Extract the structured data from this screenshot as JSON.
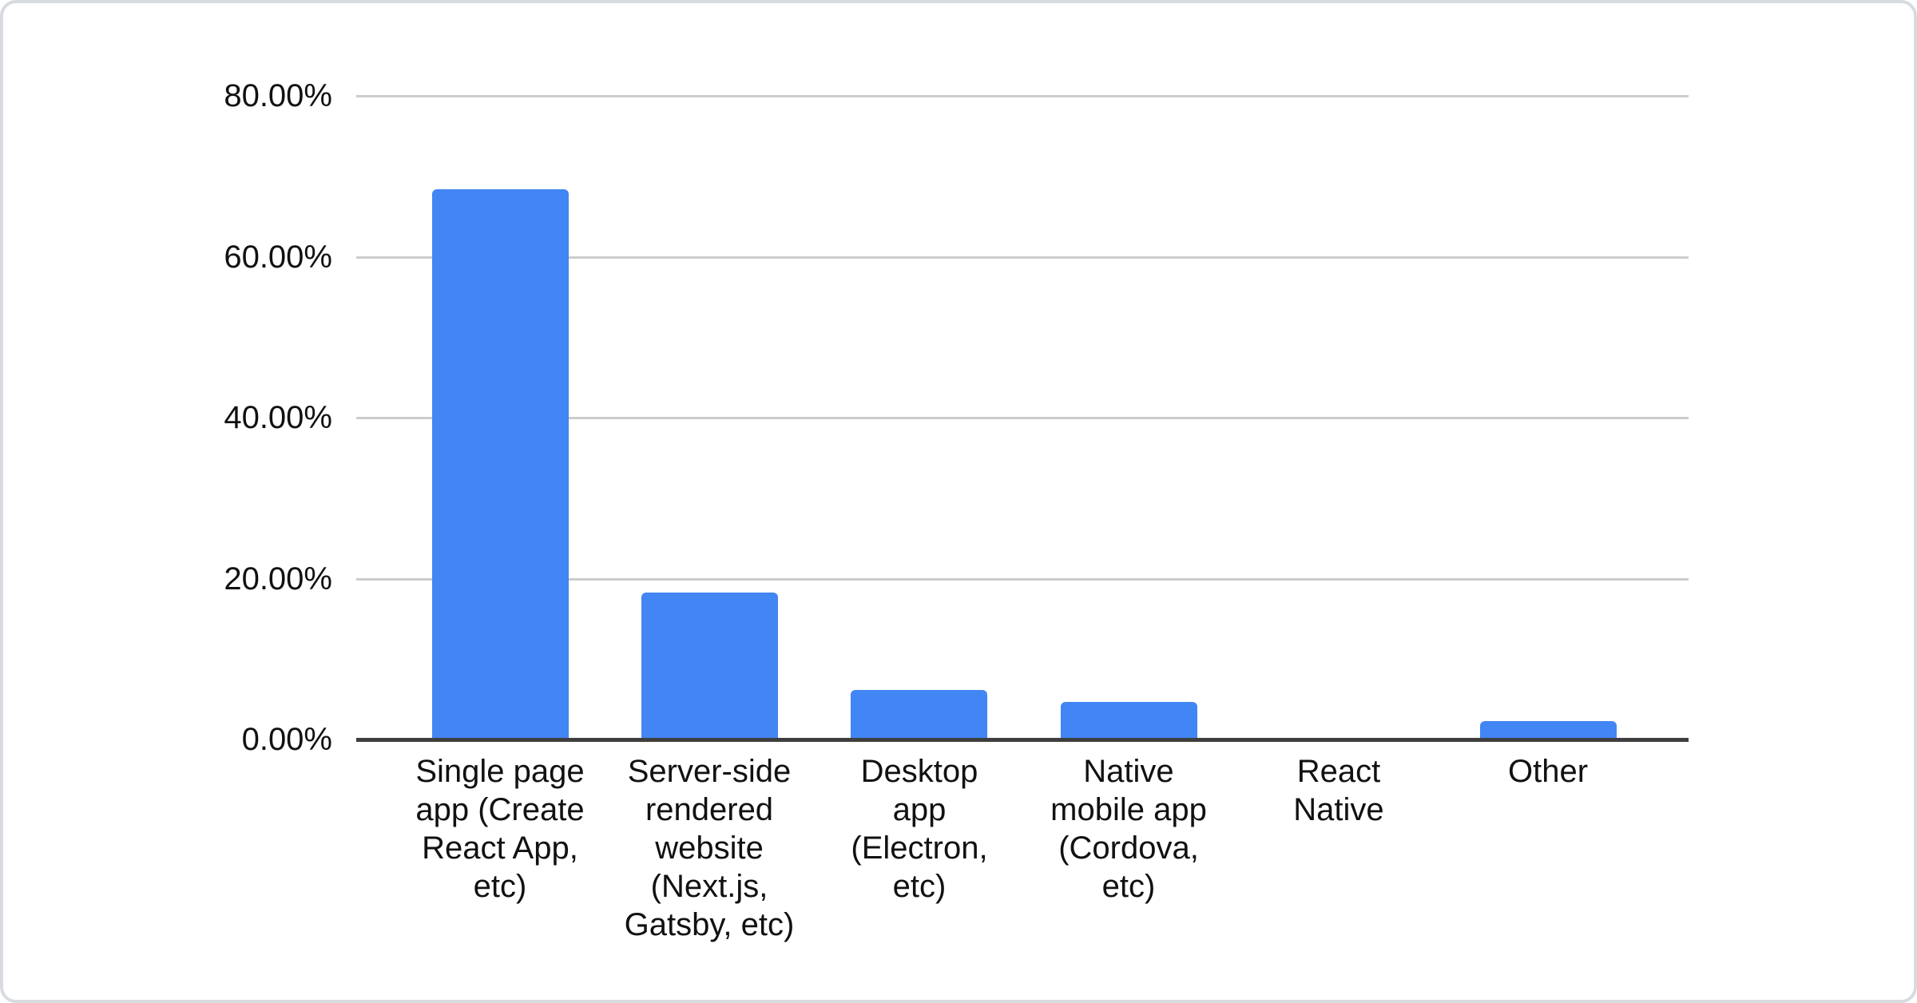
{
  "chart_data": {
    "type": "bar",
    "title": "",
    "xlabel": "",
    "ylabel": "",
    "categories": [
      "Single page app (Create React App, etc)",
      "Server-side rendered website (Next.js, Gatsby, etc)",
      "Desktop app (Electron, etc)",
      "Native mobile app (Cordova, etc)",
      "React Native",
      "Other"
    ],
    "values": [
      68.4,
      18.3,
      6.2,
      4.7,
      0,
      2.3
    ],
    "y_ticks": [
      {
        "value": 0,
        "label": "0.00%"
      },
      {
        "value": 20,
        "label": "20.00%"
      },
      {
        "value": 40,
        "label": "40.00%"
      },
      {
        "value": 60,
        "label": "60.00%"
      },
      {
        "value": 80,
        "label": "80.00%"
      }
    ],
    "ylim": [
      0,
      80
    ],
    "grid": true,
    "legend": "none",
    "colors": {
      "bar": "#4285f4",
      "gridline": "#cccccc",
      "axis_line": "#3e3e3e",
      "text": "#111111",
      "card_border": "#d7dbe0",
      "background": "#ffffff"
    }
  }
}
